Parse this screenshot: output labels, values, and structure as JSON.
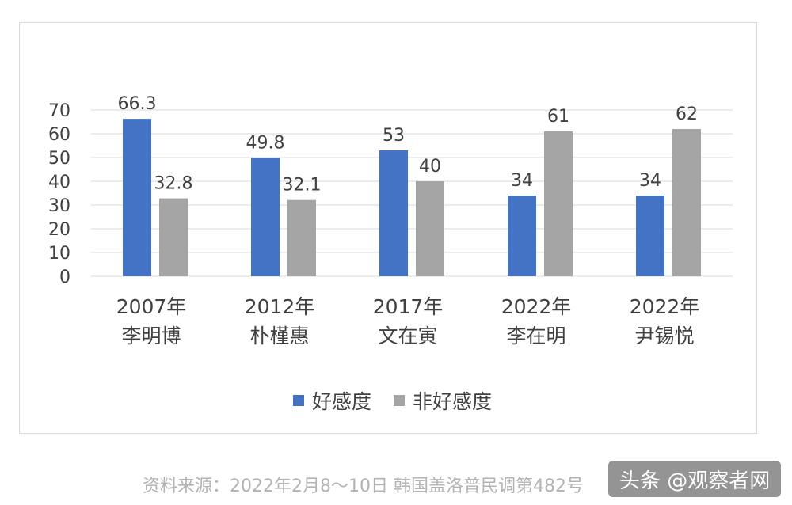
{
  "chart_data": {
    "type": "bar",
    "categories": [
      {
        "year": "2007年",
        "name": "李明博"
      },
      {
        "year": "2012年",
        "name": "朴槿惠"
      },
      {
        "year": "2017年",
        "name": "文在寅"
      },
      {
        "year": "2022年",
        "name": "李在明"
      },
      {
        "year": "2022年",
        "name": "尹锡悦"
      }
    ],
    "series": [
      {
        "name": "好感度",
        "color": "#4472c4",
        "values": [
          66.3,
          49.8,
          53,
          34,
          34
        ],
        "labels": [
          "66.3",
          "49.8",
          "53",
          "34",
          "34"
        ]
      },
      {
        "name": "非好感度",
        "color": "#a5a5a5",
        "values": [
          32.8,
          32.1,
          40,
          61,
          62
        ],
        "labels": [
          "32.8",
          "32.1",
          "40",
          "61",
          "62"
        ]
      }
    ],
    "ylim": [
      0,
      70
    ],
    "yticks": [
      "0",
      "10",
      "20",
      "30",
      "40",
      "50",
      "60",
      "70"
    ],
    "grid": true,
    "legend": "bottom"
  },
  "source_text": "资料来源：2022年2月8～10日 韩国盖洛普民调第482号",
  "watermark_text": "头条 @观察者网"
}
